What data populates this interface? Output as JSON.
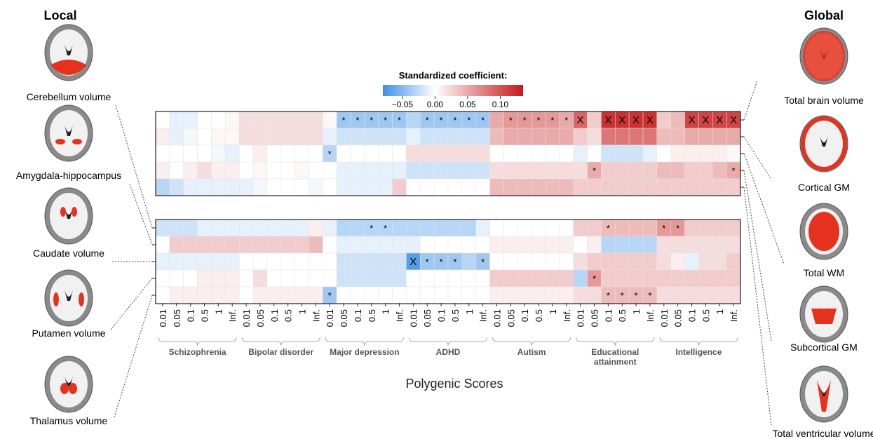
{
  "chart_data": {
    "type": "heatmap",
    "x_title": "Polygenic Scores",
    "thresholds": [
      "0.01",
      "0.05",
      "0.1",
      "0.5",
      "1",
      "Inf."
    ],
    "groups": [
      "Schizophrenia",
      "Bipolar disorder",
      "Major depression",
      "ADHD",
      "Autism",
      "Educational attainment",
      "Intelligence"
    ],
    "colorbar": {
      "title": "Standardized coefficient:",
      "clim": [
        -0.08,
        0.135
      ],
      "cmap": [
        "#3f8fe3",
        "#ffffff",
        "#c41a1a"
      ],
      "ticks": [
        {
          "value": -0.05,
          "label": "−0.05"
        },
        {
          "value": 0,
          "label": "0.00"
        },
        0.05,
        {
          "value": 0.1,
          "label": "0.10"
        }
      ]
    },
    "panels": [
      {
        "name": "Global",
        "rows": [
          "Total brain volume",
          "Cortical GM",
          "Total WM",
          "Subcortical GM",
          "Total ventricular volume"
        ],
        "values": [
          [
            0,
            -0.01,
            -0.01,
            0,
            0,
            0.005,
            0.02,
            0.02,
            0.02,
            0.02,
            0.02,
            0.02,
            0.005,
            -0.04,
            -0.04,
            -0.04,
            -0.04,
            -0.04,
            -0.03,
            -0.04,
            -0.04,
            -0.04,
            -0.04,
            -0.04,
            0.05,
            0.06,
            0.06,
            0.06,
            0.06,
            0.05,
            0.09,
            0.03,
            0.12,
            0.12,
            0.12,
            0.12,
            0.03,
            0.04,
            0.11,
            0.11,
            0.11,
            0.11
          ],
          [
            0.01,
            -0.01,
            -0.005,
            0,
            0.005,
            0.005,
            0.02,
            0.02,
            0.02,
            0.02,
            0.02,
            0.02,
            -0.01,
            -0.02,
            -0.02,
            -0.02,
            -0.02,
            -0.02,
            -0.01,
            -0.02,
            -0.02,
            -0.02,
            -0.02,
            -0.02,
            0.04,
            0.05,
            0.05,
            0.05,
            0.05,
            0.05,
            0.03,
            0.02,
            0.08,
            0.08,
            0.08,
            0.08,
            0.04,
            0.04,
            0.05,
            0.05,
            0.05,
            0.05
          ],
          [
            0,
            0,
            0,
            0,
            -0.005,
            -0.01,
            0,
            0.01,
            0,
            0,
            0,
            0,
            -0.03,
            0,
            0,
            0,
            0,
            0,
            0.02,
            0.02,
            0.02,
            0.02,
            0.02,
            0.02,
            0,
            0,
            0,
            0,
            0,
            0,
            -0.01,
            0,
            -0.02,
            -0.02,
            -0.02,
            -0.01,
            0,
            0.01,
            0.01,
            0.01,
            0.01,
            0.005
          ],
          [
            0.01,
            0,
            0.01,
            0.02,
            0.01,
            0.01,
            0,
            0.005,
            0,
            0,
            0.005,
            0,
            0,
            -0.01,
            -0.01,
            -0.01,
            -0.01,
            -0.01,
            -0.02,
            -0.02,
            -0.02,
            -0.02,
            -0.02,
            -0.02,
            0.02,
            0.02,
            0.02,
            0.02,
            0.02,
            0.02,
            0.02,
            0.05,
            0.03,
            0.03,
            0.03,
            0.03,
            0.04,
            0.04,
            0.03,
            0.03,
            0.04,
            0.05
          ],
          [
            -0.03,
            -0.02,
            -0.01,
            -0.01,
            -0.01,
            -0.01,
            -0.01,
            -0.005,
            0,
            0,
            0,
            -0.005,
            0,
            -0.01,
            -0.01,
            -0.01,
            -0.01,
            0.03,
            0,
            0,
            0,
            0,
            0,
            0,
            0.04,
            0.04,
            0.04,
            0.04,
            0.04,
            0.04,
            0.03,
            0.03,
            0.03,
            0.03,
            0.03,
            0.03,
            0.03,
            0.03,
            0.03,
            0.03,
            0.03,
            0.03
          ]
        ],
        "marks": [
          {
            "row": 0,
            "col": 13,
            "label": "*"
          },
          {
            "row": 0,
            "col": 14,
            "label": "*"
          },
          {
            "row": 0,
            "col": 15,
            "label": "*"
          },
          {
            "row": 0,
            "col": 16,
            "label": "*"
          },
          {
            "row": 0,
            "col": 17,
            "label": "*"
          },
          {
            "row": 0,
            "col": 19,
            "label": "*"
          },
          {
            "row": 0,
            "col": 20,
            "label": "*"
          },
          {
            "row": 0,
            "col": 21,
            "label": "*"
          },
          {
            "row": 0,
            "col": 22,
            "label": "*"
          },
          {
            "row": 0,
            "col": 23,
            "label": "*"
          },
          {
            "row": 0,
            "col": 25,
            "label": "*"
          },
          {
            "row": 0,
            "col": 26,
            "label": "*"
          },
          {
            "row": 0,
            "col": 27,
            "label": "*"
          },
          {
            "row": 0,
            "col": 28,
            "label": "*"
          },
          {
            "row": 0,
            "col": 29,
            "label": "*"
          },
          {
            "row": 0,
            "col": 30,
            "label": "X"
          },
          {
            "row": 0,
            "col": 32,
            "label": "X"
          },
          {
            "row": 0,
            "col": 33,
            "label": "X"
          },
          {
            "row": 0,
            "col": 34,
            "label": "X"
          },
          {
            "row": 0,
            "col": 35,
            "label": "X"
          },
          {
            "row": 0,
            "col": 38,
            "label": "X"
          },
          {
            "row": 0,
            "col": 39,
            "label": "X"
          },
          {
            "row": 0,
            "col": 40,
            "label": "X"
          },
          {
            "row": 0,
            "col": 41,
            "label": "X"
          },
          {
            "row": 2,
            "col": 12,
            "label": "*"
          },
          {
            "row": 3,
            "col": 31,
            "label": "*"
          },
          {
            "row": 3,
            "col": 41,
            "label": "*"
          }
        ]
      },
      {
        "name": "Local",
        "rows": [
          "Cerebellum volume",
          "Amygdala-hippocampus",
          "Caudate volume",
          "Putamen volume",
          "Thalamus volume"
        ],
        "values": [
          [
            -0.02,
            -0.02,
            -0.02,
            -0.01,
            -0.01,
            -0.01,
            -0.01,
            -0.01,
            -0.01,
            -0.01,
            -0.01,
            0.01,
            -0.01,
            -0.03,
            -0.03,
            -0.03,
            -0.03,
            -0.03,
            -0.03,
            -0.03,
            -0.03,
            -0.03,
            -0.03,
            -0.01,
            0,
            0,
            0,
            0,
            0,
            0,
            0.03,
            0.03,
            0.04,
            0.04,
            0.04,
            0.04,
            0.06,
            0.06,
            0.03,
            0.03,
            0.03,
            0.03
          ],
          [
            0,
            0.03,
            0.03,
            0.03,
            0.03,
            0.03,
            0.03,
            0.03,
            0.03,
            0.03,
            0.03,
            0.04,
            0,
            -0.01,
            -0.01,
            -0.01,
            -0.01,
            -0.01,
            -0.01,
            0,
            0,
            0,
            0,
            0,
            0.01,
            0.01,
            0.01,
            0.01,
            0.01,
            0.01,
            0,
            0.01,
            -0.03,
            -0.03,
            -0.03,
            -0.03,
            0.02,
            0.02,
            0.02,
            0.02,
            0.02,
            0.02
          ],
          [
            -0.01,
            -0.01,
            -0.01,
            -0.01,
            -0.01,
            -0.01,
            0,
            0,
            0,
            0,
            0,
            0,
            0,
            -0.02,
            -0.02,
            -0.02,
            -0.02,
            -0.02,
            -0.07,
            -0.04,
            -0.04,
            -0.04,
            -0.03,
            -0.04,
            0,
            0,
            0,
            0,
            0,
            0,
            0.02,
            0.03,
            0.03,
            0.03,
            0.03,
            0.03,
            0.02,
            0.01,
            -0.01,
            0.02,
            0.02,
            0.03
          ],
          [
            0,
            0,
            0,
            0.01,
            0.01,
            0.01,
            0,
            0.02,
            0,
            0,
            0,
            0,
            0,
            -0.02,
            -0.02,
            -0.02,
            -0.02,
            -0.02,
            0,
            0,
            0,
            0,
            0,
            0,
            0.03,
            0.03,
            0.03,
            0.03,
            0.03,
            0.03,
            -0.03,
            0.06,
            0.03,
            0.03,
            0.03,
            0.03,
            0.03,
            0.03,
            0.03,
            0.03,
            0.03,
            0.03
          ],
          [
            0,
            0.01,
            0.01,
            0.01,
            0.01,
            0.01,
            0,
            0.01,
            0.01,
            0.01,
            0.01,
            0.01,
            -0.04,
            0,
            0,
            0,
            0,
            0,
            0,
            0,
            0,
            0,
            0,
            0,
            0.01,
            0.01,
            0.01,
            0.01,
            0.01,
            0.01,
            0.02,
            0.02,
            0.04,
            0.04,
            0.04,
            0.04,
            0.02,
            0.02,
            0.02,
            0.02,
            0.02,
            0.02
          ]
        ],
        "marks": [
          {
            "row": 0,
            "col": 15,
            "label": "*"
          },
          {
            "row": 0,
            "col": 16,
            "label": "*"
          },
          {
            "row": 0,
            "col": 32,
            "label": "*"
          },
          {
            "row": 0,
            "col": 36,
            "label": "*"
          },
          {
            "row": 0,
            "col": 37,
            "label": "*"
          },
          {
            "row": 2,
            "col": 18,
            "label": "X"
          },
          {
            "row": 2,
            "col": 19,
            "label": "*"
          },
          {
            "row": 2,
            "col": 20,
            "label": "*"
          },
          {
            "row": 2,
            "col": 21,
            "label": "*"
          },
          {
            "row": 2,
            "col": 23,
            "label": "*"
          },
          {
            "row": 3,
            "col": 31,
            "label": "*"
          },
          {
            "row": 4,
            "col": 12,
            "label": "*"
          },
          {
            "row": 4,
            "col": 32,
            "label": "*"
          },
          {
            "row": 4,
            "col": 33,
            "label": "*"
          },
          {
            "row": 4,
            "col": 34,
            "label": "*"
          },
          {
            "row": 4,
            "col": 35,
            "label": "*"
          }
        ]
      }
    ]
  }
}
